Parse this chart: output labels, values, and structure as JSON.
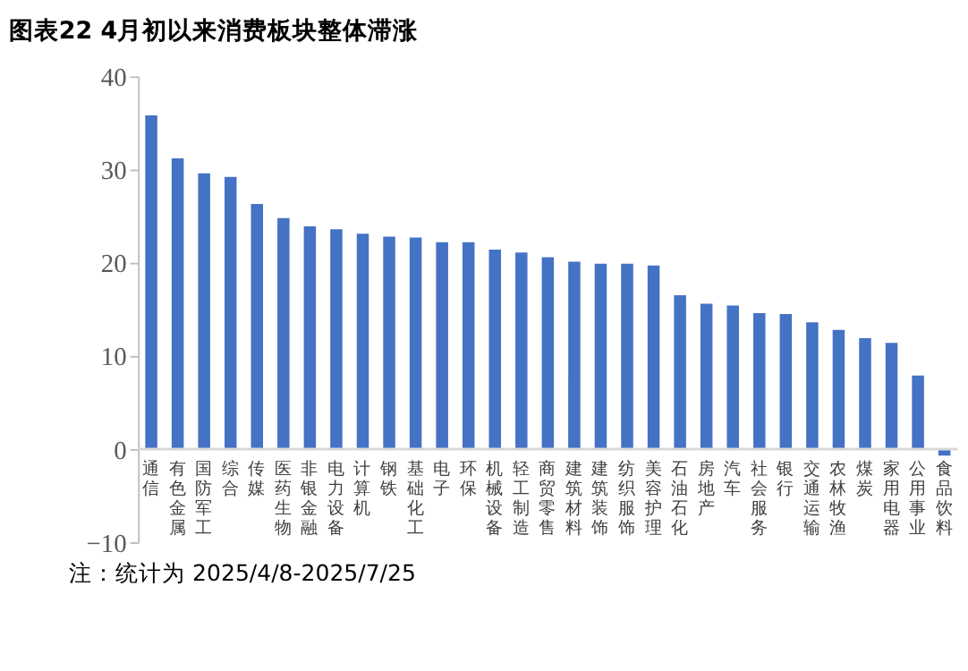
{
  "chart_data": {
    "type": "bar",
    "title": "图表22 4月初以来消费板块整体滞涨",
    "categories": [
      "通信",
      "有色金属",
      "国防军工",
      "综合",
      "传媒",
      "医药生物",
      "非银金融",
      "电力设备",
      "计算机",
      "钢铁",
      "基础化工",
      "电子",
      "环保",
      "机械设备",
      "轻工制造",
      "商贸零售",
      "建筑材料",
      "建筑装饰",
      "纺织服饰",
      "美容护理",
      "石油石化",
      "房地产",
      "汽车",
      "社会服务",
      "银行",
      "交通运输",
      "农林牧渔",
      "煤炭",
      "家用电器",
      "公用事业",
      "食品饮料"
    ],
    "values": [
      35.8,
      31.2,
      29.6,
      29.2,
      26.3,
      24.8,
      23.9,
      23.6,
      23.1,
      22.8,
      22.7,
      22.2,
      22.2,
      21.4,
      21.1,
      20.6,
      20.1,
      19.9,
      19.9,
      19.7,
      16.5,
      15.6,
      15.4,
      14.6,
      14.5,
      13.6,
      12.8,
      11.9,
      11.4,
      7.9,
      -0.7
    ],
    "color": "#4472c4",
    "ylim": [
      -10,
      40
    ],
    "yticks": [
      -10,
      0,
      10,
      20,
      30,
      40
    ],
    "grid": false,
    "annotations": [
      "注：统计为 2025/4/8-2025/7/25"
    ]
  }
}
